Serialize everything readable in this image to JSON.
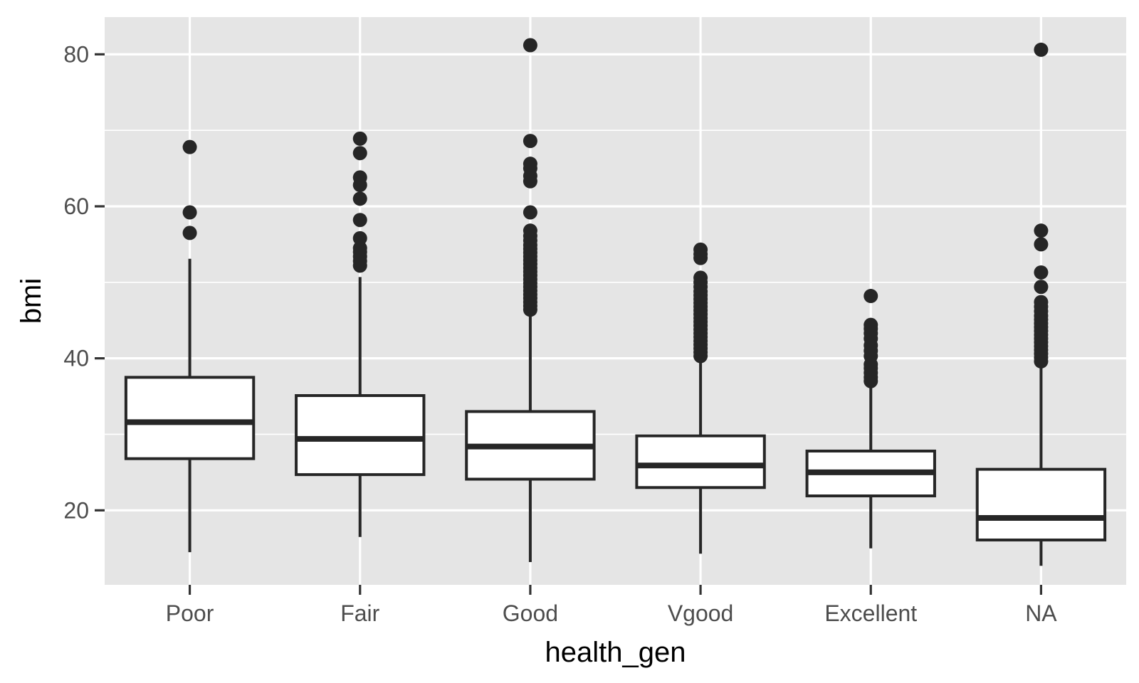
{
  "chart_data": {
    "type": "boxplot",
    "title": "",
    "xlabel": "health_gen",
    "ylabel": "bmi",
    "ylim": [
      10.2,
      84.9
    ],
    "yticks_major": [
      20,
      40,
      60,
      80
    ],
    "yticks_minor": [
      10,
      30,
      50,
      70
    ],
    "categories": [
      "Poor",
      "Fair",
      "Good",
      "Vgood",
      "Excellent",
      "NA"
    ],
    "boxes": [
      {
        "category": "Poor",
        "lower_whisker": 14.5,
        "q1": 26.8,
        "median": 31.6,
        "q3": 37.5,
        "upper_whisker": 53.1,
        "outliers": [
          56.5,
          59.2,
          67.8
        ]
      },
      {
        "category": "Fair",
        "lower_whisker": 16.5,
        "q1": 24.7,
        "median": 29.4,
        "q3": 35.1,
        "upper_whisker": 50.7,
        "outliers": [
          52.2,
          52.8,
          53.4,
          54.0,
          54.5,
          55.8,
          58.2,
          61.0,
          62.8,
          63.8,
          67.0,
          68.9
        ]
      },
      {
        "category": "Good",
        "lower_whisker": 13.2,
        "q1": 24.1,
        "median": 28.4,
        "q3": 33.0,
        "upper_whisker": 45.9,
        "outliers": [
          46.4,
          46.9,
          47.4,
          47.9,
          48.4,
          48.9,
          49.4,
          49.9,
          50.4,
          50.9,
          51.4,
          51.9,
          52.4,
          52.9,
          53.4,
          53.9,
          54.4,
          54.9,
          55.5,
          56.1,
          56.8,
          59.2,
          63.3,
          64.0,
          65.0,
          65.6,
          68.6,
          81.2
        ]
      },
      {
        "category": "Vgood",
        "lower_whisker": 14.3,
        "q1": 23.0,
        "median": 25.9,
        "q3": 29.8,
        "upper_whisker": 39.9,
        "outliers": [
          40.3,
          40.8,
          41.3,
          41.8,
          42.3,
          42.8,
          43.3,
          43.8,
          44.3,
          44.8,
          45.3,
          45.8,
          46.3,
          46.8,
          47.3,
          47.8,
          48.3,
          48.8,
          49.4,
          50.0,
          50.6,
          53.2,
          53.7,
          54.3
        ]
      },
      {
        "category": "Excellent",
        "lower_whisker": 15.0,
        "q1": 21.9,
        "median": 25.0,
        "q3": 27.8,
        "upper_whisker": 36.5,
        "outliers": [
          37.0,
          37.5,
          38.1,
          38.7,
          39.2,
          40.3,
          41.0,
          41.7,
          42.6,
          43.3,
          43.9,
          44.4,
          48.2
        ]
      },
      {
        "category": "NA",
        "lower_whisker": 12.7,
        "q1": 16.1,
        "median": 19.0,
        "q3": 25.4,
        "upper_whisker": 39.1,
        "outliers": [
          39.6,
          40.1,
          40.6,
          41.1,
          41.6,
          42.1,
          42.6,
          43.1,
          43.6,
          44.1,
          44.6,
          45.1,
          45.6,
          46.2,
          46.8,
          47.4,
          49.4,
          51.3,
          55.0,
          56.8,
          80.6
        ]
      }
    ],
    "colors": {
      "panel_background": "#e5e5e5",
      "grid_line": "#ffffff",
      "box_fill": "#ffffff",
      "box_stroke": "#262626",
      "point": "#262626",
      "tick_label": "#4d4d4d",
      "axis_title": "#000000"
    }
  }
}
